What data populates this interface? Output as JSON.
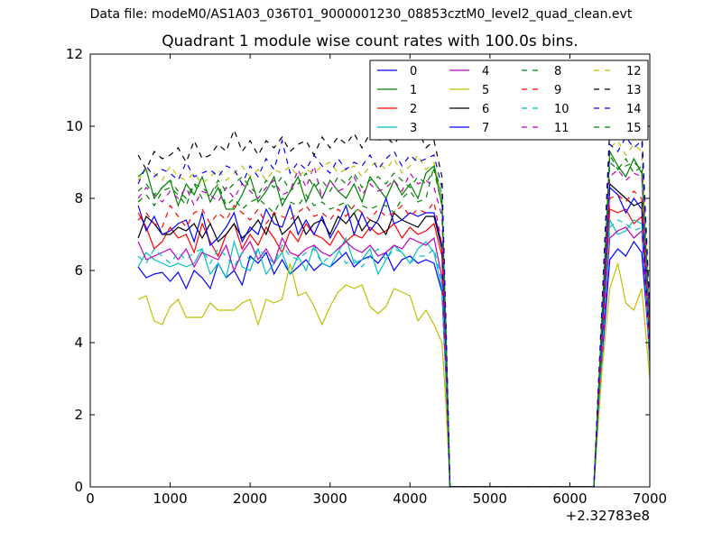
{
  "figure": {
    "suptitle": "Data file: modeM0/AS1A03_036T01_9000001230_08853cztM0_level2_quad_clean.evt",
    "x_offset_label": "+2.32783e8"
  },
  "chart_data": {
    "type": "line",
    "title": "Quadrant 1 module wise count rates with 100.0s bins.",
    "xlabel": "",
    "ylabel": "",
    "xlim": [
      0,
      7000
    ],
    "ylim": [
      0,
      12
    ],
    "xticks": [
      0,
      1000,
      2000,
      3000,
      4000,
      5000,
      6000,
      7000
    ],
    "yticks": [
      0,
      2,
      4,
      6,
      8,
      10,
      12
    ],
    "x_offset": 232783000,
    "grid": false,
    "legend_position": "top-right",
    "legend_columns": 4,
    "x": [
      600,
      700,
      800,
      900,
      1000,
      1100,
      1200,
      1300,
      1400,
      1500,
      1600,
      1700,
      1800,
      1900,
      2000,
      2100,
      2200,
      2300,
      2400,
      2500,
      2600,
      2700,
      2800,
      2900,
      3000,
      3100,
      3200,
      3300,
      3400,
      3500,
      3600,
      3700,
      3800,
      3900,
      4000,
      4100,
      4200,
      4300,
      4400,
      4450,
      4500,
      4600,
      4700,
      4800,
      4900,
      5000,
      5100,
      5200,
      5300,
      5400,
      5500,
      5600,
      5700,
      5800,
      5900,
      6000,
      6100,
      6200,
      6300,
      6400,
      6500,
      6600,
      6700,
      6800,
      6900,
      7000
    ],
    "series": [
      {
        "name": "0",
        "color": "#0000ff",
        "dash": "solid",
        "values": [
          6.1,
          5.8,
          5.9,
          5.95,
          5.7,
          5.95,
          5.5,
          6.0,
          5.8,
          5.5,
          6.2,
          5.8,
          6.0,
          5.6,
          6.4,
          6.2,
          6.5,
          5.9,
          6.3,
          5.9,
          6.1,
          6.3,
          6.0,
          6.2,
          6.1,
          6.3,
          6.5,
          6.1,
          6.3,
          6.4,
          6.2,
          6.5,
          6.0,
          6.3,
          6.4,
          6.2,
          6.3,
          6.2,
          5.4,
          3.0,
          0,
          0,
          0,
          0,
          0,
          0,
          0,
          0,
          0,
          0,
          0,
          0,
          0,
          0,
          0,
          0,
          0,
          0,
          0,
          3.5,
          6.3,
          6.6,
          6.4,
          6.8,
          6.5,
          3.7
        ]
      },
      {
        "name": "1",
        "color": "#008000",
        "dash": "solid",
        "values": [
          8.6,
          8.8,
          8.0,
          8.3,
          8.5,
          7.8,
          8.4,
          8.1,
          8.6,
          7.9,
          8.3,
          7.7,
          7.7,
          8.1,
          8.6,
          7.9,
          8.2,
          8.6,
          7.8,
          8.2,
          8.6,
          7.9,
          8.4,
          8.0,
          8.5,
          8.2,
          8.0,
          8.4,
          7.9,
          8.6,
          8.3,
          8.0,
          8.5,
          8.1,
          8.4,
          8.0,
          8.7,
          8.9,
          7.8,
          4.3,
          0,
          0,
          0,
          0,
          0,
          0,
          0,
          0,
          0,
          0,
          0,
          0,
          0,
          0,
          0,
          0,
          0,
          0,
          0,
          4.6,
          9.3,
          8.9,
          8.6,
          9.1,
          8.7,
          4.5
        ]
      },
      {
        "name": "2",
        "color": "#ff0000",
        "dash": "solid",
        "values": [
          7.6,
          7.2,
          6.6,
          6.8,
          7.2,
          6.9,
          7.0,
          6.5,
          7.3,
          6.8,
          6.4,
          7.0,
          7.3,
          6.6,
          7.0,
          6.7,
          7.2,
          6.9,
          6.5,
          7.1,
          6.8,
          7.3,
          7.0,
          6.9,
          6.7,
          7.1,
          6.8,
          7.0,
          6.9,
          7.2,
          7.0,
          7.1,
          7.3,
          6.9,
          7.2,
          7.0,
          7.1,
          7.3,
          6.4,
          3.4,
          0,
          0,
          0,
          0,
          0,
          0,
          0,
          0,
          0,
          0,
          0,
          0,
          0,
          0,
          0,
          0,
          0,
          0,
          0,
          3.9,
          7.7,
          7.6,
          7.7,
          7.3,
          7.5,
          3.5
        ]
      },
      {
        "name": "3",
        "color": "#00bfbf",
        "dash": "solid",
        "values": [
          6.1,
          6.5,
          6.3,
          6.2,
          6.1,
          6.2,
          6.1,
          6.2,
          6.6,
          5.9,
          6.2,
          5.8,
          6.8,
          6.1,
          6.0,
          6.6,
          5.9,
          6.2,
          6.5,
          5.9,
          6.4,
          6.0,
          6.7,
          6.2,
          6.1,
          6.5,
          6.9,
          6.2,
          6.3,
          6.6,
          5.9,
          6.3,
          6.7,
          6.5,
          6.2,
          6.6,
          6.8,
          6.5,
          5.5,
          3.1,
          0,
          0,
          0,
          0,
          0,
          0,
          0,
          0,
          0,
          0,
          0,
          0,
          0,
          0,
          0,
          0,
          0,
          0,
          0,
          3.6,
          7.4,
          7.0,
          7.1,
          7.4,
          7.3,
          3.4
        ]
      },
      {
        "name": "4",
        "color": "#bf00bf",
        "dash": "solid",
        "values": [
          6.8,
          6.3,
          6.4,
          6.5,
          6.6,
          6.3,
          6.6,
          6.1,
          6.5,
          6.4,
          6.3,
          6.7,
          6.0,
          6.5,
          6.8,
          6.3,
          6.6,
          6.2,
          6.9,
          6.5,
          6.4,
          6.6,
          6.7,
          6.5,
          6.4,
          6.6,
          6.8,
          6.6,
          6.5,
          6.7,
          6.4,
          6.5,
          6.7,
          6.6,
          6.9,
          6.8,
          6.7,
          6.9,
          5.8,
          3.2,
          0,
          0,
          0,
          0,
          0,
          0,
          0,
          0,
          0,
          0,
          0,
          0,
          0,
          0,
          0,
          0,
          0,
          0,
          0,
          3.7,
          6.9,
          7.1,
          7.2,
          6.9,
          7.1,
          3.5
        ]
      },
      {
        "name": "5",
        "color": "#bfbf00",
        "dash": "solid",
        "values": [
          5.2,
          5.3,
          4.6,
          4.5,
          5.0,
          5.2,
          4.7,
          4.7,
          4.7,
          5.1,
          4.9,
          4.9,
          4.9,
          5.1,
          5.2,
          4.5,
          5.2,
          5.1,
          5.2,
          6.2,
          5.3,
          5.4,
          5.0,
          4.5,
          5.0,
          5.4,
          5.6,
          5.5,
          5.6,
          5.0,
          4.8,
          5.0,
          5.5,
          5.4,
          5.3,
          4.6,
          4.9,
          4.5,
          4.0,
          2.3,
          0,
          0,
          0,
          0,
          0,
          0,
          0,
          0,
          0,
          0,
          0,
          0,
          0,
          0,
          0,
          0,
          0,
          0,
          0,
          3.2,
          5.5,
          6.2,
          5.1,
          4.9,
          5.5,
          3.0
        ]
      },
      {
        "name": "6",
        "color": "#000000",
        "dash": "solid",
        "values": [
          6.9,
          7.5,
          7.3,
          7.0,
          7.0,
          7.2,
          7.1,
          7.3,
          6.9,
          7.3,
          6.8,
          7.0,
          7.3,
          6.9,
          7.1,
          7.4,
          7.0,
          7.6,
          7.0,
          7.2,
          7.5,
          7.0,
          7.3,
          7.4,
          7.0,
          7.5,
          7.3,
          7.6,
          7.1,
          7.4,
          7.3,
          7.0,
          7.6,
          7.4,
          7.3,
          7.2,
          7.5,
          7.5,
          6.6,
          3.5,
          0,
          0,
          0,
          0,
          0,
          0,
          0,
          0,
          0,
          0,
          0,
          0,
          0,
          0,
          0,
          0,
          0,
          0,
          0,
          4.1,
          8.4,
          8.2,
          8.0,
          7.8,
          7.9,
          3.8
        ]
      },
      {
        "name": "7",
        "color": "#0000ff",
        "dash": "solid",
        "values": [
          7.8,
          7.1,
          7.5,
          7.0,
          7.1,
          7.3,
          7.4,
          6.8,
          7.6,
          6.7,
          6.9,
          7.2,
          7.6,
          6.8,
          7.2,
          7.0,
          7.7,
          7.3,
          7.2,
          7.8,
          7.0,
          7.4,
          7.0,
          7.5,
          6.9,
          7.3,
          7.8,
          7.0,
          7.6,
          7.1,
          7.4,
          8.0,
          7.3,
          7.4,
          7.6,
          7.5,
          7.6,
          7.6,
          6.7,
          3.6,
          0,
          0,
          0,
          0,
          0,
          0,
          0,
          0,
          0,
          0,
          0,
          0,
          0,
          0,
          0,
          0,
          0,
          0,
          0,
          4.2,
          8.3,
          8.1,
          7.6,
          8.0,
          7.7,
          3.8
        ]
      },
      {
        "name": "8",
        "color": "#008000",
        "dash": "dashed",
        "values": [
          7.9,
          8.1,
          7.8,
          8.2,
          8.3,
          8.1,
          7.8,
          8.4,
          8.0,
          8.1,
          8.4,
          7.8,
          8.0,
          7.7,
          7.9,
          8.0,
          7.8,
          7.6,
          8.0,
          7.9,
          7.8,
          8.1,
          7.8,
          7.9,
          7.7,
          7.8,
          7.9,
          7.6,
          7.8,
          7.7,
          7.8,
          7.8,
          7.6,
          8.0,
          8.2,
          7.9,
          8.0,
          8.9,
          8.1,
          4.3,
          0,
          0,
          0,
          0,
          0,
          0,
          0,
          0,
          0,
          0,
          0,
          0,
          0,
          0,
          0,
          0,
          0,
          0,
          0,
          4.6,
          9.2,
          8.8,
          8.9,
          9.0,
          8.8,
          4.4
        ]
      },
      {
        "name": "9",
        "color": "#ff0000",
        "dash": "dashed",
        "values": [
          7.4,
          7.6,
          7.3,
          7.2,
          7.8,
          7.5,
          7.2,
          7.6,
          7.7,
          7.3,
          7.6,
          7.4,
          7.8,
          7.6,
          7.4,
          7.7,
          7.3,
          7.6,
          7.5,
          7.4,
          7.6,
          7.8,
          7.5,
          7.6,
          7.4,
          7.7,
          7.5,
          7.8,
          7.6,
          7.4,
          7.7,
          7.5,
          7.6,
          7.8,
          7.5,
          7.7,
          7.6,
          7.9,
          6.7,
          3.6,
          0,
          0,
          0,
          0,
          0,
          0,
          0,
          0,
          0,
          0,
          0,
          0,
          0,
          0,
          0,
          0,
          0,
          0,
          0,
          4.0,
          8.0,
          8.1,
          7.9,
          8.2,
          8.0,
          3.9
        ]
      },
      {
        "name": "10",
        "color": "#00bfbf",
        "dash": "dashed",
        "values": [
          6.4,
          6.2,
          6.6,
          6.4,
          6.2,
          6.5,
          6.3,
          6.5,
          6.6,
          6.2,
          6.6,
          6.4,
          6.1,
          6.5,
          6.3,
          6.6,
          6.4,
          6.2,
          6.7,
          6.4,
          6.3,
          6.5,
          6.6,
          6.2,
          6.4,
          6.6,
          6.2,
          6.3,
          6.1,
          6.4,
          6.6,
          6.3,
          6.6,
          6.5,
          6.2,
          6.4,
          6.4,
          6.6,
          5.7,
          3.1,
          0,
          0,
          0,
          0,
          0,
          0,
          0,
          0,
          0,
          0,
          0,
          0,
          0,
          0,
          0,
          0,
          0,
          0,
          0,
          3.6,
          7.2,
          7.4,
          7.3,
          7.1,
          7.2,
          3.6
        ]
      },
      {
        "name": "11",
        "color": "#bf00bf",
        "dash": "dashed",
        "values": [
          8.0,
          8.3,
          8.1,
          7.9,
          8.2,
          8.0,
          8.3,
          7.8,
          8.2,
          8.1,
          7.9,
          8.3,
          8.0,
          8.4,
          8.2,
          8.0,
          8.3,
          8.5,
          8.1,
          8.2,
          8.8,
          8.3,
          8.9,
          8.0,
          8.5,
          8.2,
          8.3,
          8.6,
          8.1,
          8.4,
          8.2,
          8.3,
          8.5,
          8.2,
          8.7,
          8.4,
          8.5,
          8.3,
          7.5,
          4.0,
          0,
          0,
          0,
          0,
          0,
          0,
          0,
          0,
          0,
          0,
          0,
          0,
          0,
          0,
          0,
          0,
          0,
          0,
          0,
          4.4,
          8.6,
          8.8,
          8.5,
          8.7,
          8.6,
          4.2
        ]
      },
      {
        "name": "12",
        "color": "#bfbf00",
        "dash": "dashed",
        "values": [
          8.5,
          8.8,
          8.7,
          8.5,
          8.9,
          8.6,
          8.5,
          8.7,
          8.4,
          8.6,
          8.8,
          8.5,
          8.7,
          8.9,
          8.6,
          8.8,
          8.5,
          8.8,
          8.7,
          8.9,
          8.6,
          8.8,
          8.7,
          8.9,
          9.0,
          8.7,
          8.8,
          8.9,
          8.6,
          8.9,
          9.0,
          8.8,
          9.1,
          8.7,
          8.9,
          9.2,
          8.8,
          9.0,
          8.0,
          4.3,
          0,
          0,
          0,
          0,
          0,
          0,
          0,
          0,
          0,
          0,
          0,
          0,
          0,
          0,
          0,
          0,
          0,
          0,
          0,
          4.7,
          9.4,
          9.6,
          9.2,
          9.5,
          9.3,
          4.6
        ]
      },
      {
        "name": "13",
        "color": "#000000",
        "dash": "dashed",
        "values": [
          9.2,
          8.8,
          9.3,
          9.1,
          9.2,
          9.4,
          9.0,
          9.6,
          9.1,
          9.2,
          9.5,
          9.3,
          9.9,
          9.3,
          9.6,
          9.2,
          9.6,
          9.4,
          9.7,
          9.3,
          9.5,
          9.6,
          9.2,
          9.7,
          9.4,
          9.7,
          9.5,
          9.8,
          9.4,
          9.8,
          9.6,
          9.7,
          9.5,
          9.8,
          9.6,
          9.9,
          9.4,
          9.6,
          8.6,
          4.6,
          0,
          0,
          0,
          0,
          0,
          0,
          0,
          0,
          0,
          0,
          0,
          0,
          0,
          0,
          0,
          0,
          0,
          0,
          0,
          5.0,
          10.0,
          10.2,
          9.9,
          10.1,
          9.9,
          4.9
        ]
      },
      {
        "name": "14",
        "color": "#0000ff",
        "dash": "dashed",
        "values": [
          8.4,
          8.9,
          8.6,
          8.8,
          8.7,
          8.5,
          9.0,
          8.6,
          8.7,
          8.8,
          8.6,
          8.9,
          8.8,
          8.4,
          8.9,
          8.6,
          9.1,
          8.8,
          9.6,
          8.7,
          9.0,
          8.8,
          9.2,
          8.9,
          8.7,
          9.1,
          8.8,
          9.0,
          8.9,
          9.2,
          8.8,
          9.1,
          9.3,
          8.9,
          9.2,
          9.0,
          9.1,
          9.2,
          8.3,
          4.4,
          0,
          0,
          0,
          0,
          0,
          0,
          0,
          0,
          0,
          0,
          0,
          0,
          0,
          0,
          0,
          0,
          0,
          0,
          0,
          4.8,
          9.5,
          9.3,
          9.7,
          9.4,
          9.6,
          4.7
        ]
      },
      {
        "name": "15",
        "color": "#008000",
        "dash": "dashed",
        "values": [
          8.2,
          8.4,
          8.1,
          8.3,
          8.5,
          8.2,
          8.0,
          8.4,
          8.3,
          8.1,
          8.5,
          8.2,
          8.4,
          8.6,
          8.3,
          8.1,
          8.5,
          8.3,
          8.6,
          8.2,
          8.4,
          8.7,
          8.3,
          8.5,
          8.2,
          8.6,
          8.4,
          8.7,
          8.3,
          8.5,
          8.6,
          8.4,
          8.7,
          8.5,
          8.3,
          8.6,
          8.4,
          8.8,
          7.8,
          4.2,
          0,
          0,
          0,
          0,
          0,
          0,
          0,
          0,
          0,
          0,
          0,
          0,
          0,
          0,
          0,
          0,
          0,
          0,
          0,
          4.5,
          9.0,
          8.8,
          9.1,
          8.7,
          8.9,
          4.4
        ]
      }
    ]
  }
}
